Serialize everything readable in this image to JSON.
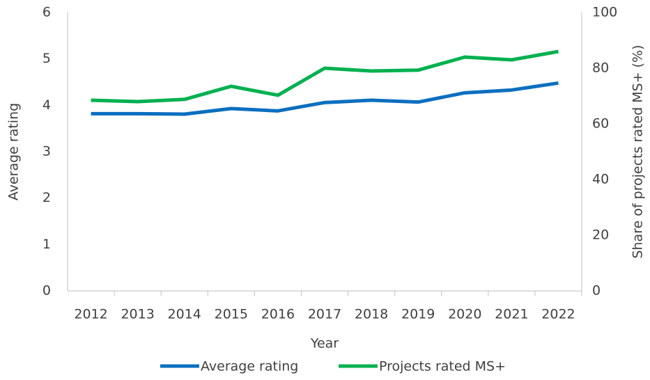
{
  "chart_data": {
    "type": "line",
    "xlabel": "Year",
    "ylabel": "Average rating",
    "y2label": "Share of projects rated MS+ (%)",
    "categories": [
      "2012",
      "2013",
      "2014",
      "2015",
      "2016",
      "2017",
      "2018",
      "2019",
      "2020",
      "2021",
      "2022"
    ],
    "series": [
      {
        "name": "Average rating",
        "color": "#0b6fc0",
        "values": [
          3.82,
          3.82,
          3.81,
          3.93,
          3.88,
          4.06,
          4.11,
          4.07,
          4.27,
          4.33,
          4.48
        ]
      },
      {
        "name": "Projects rated MS+",
        "color": "#00b050",
        "axis": "y2",
        "values": [
          68.5,
          68,
          68.8,
          73.5,
          70.3,
          80,
          79,
          79.3,
          84,
          83,
          86
        ]
      }
    ],
    "ylim": [
      0,
      6
    ],
    "yticks": [
      0,
      1,
      2,
      3,
      4,
      5,
      6
    ],
    "y2lim": [
      0,
      100
    ],
    "y2ticks": [
      0,
      20,
      40,
      60,
      80,
      100
    ],
    "legend": "bottom"
  }
}
